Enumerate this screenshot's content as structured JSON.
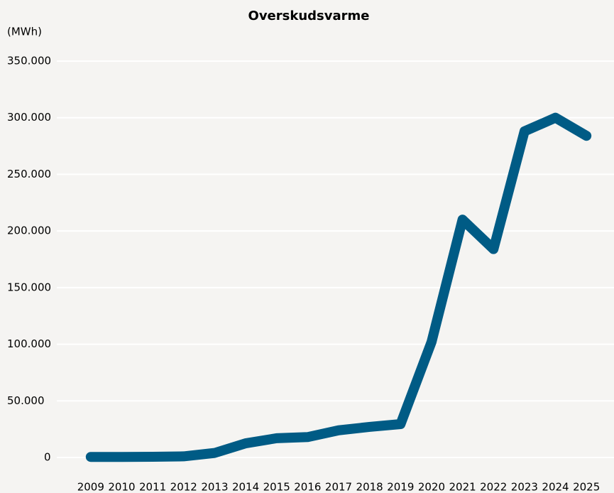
{
  "chart_data": {
    "type": "line",
    "title": "Overskudsvarme",
    "y_label": "(MWh)",
    "categories": [
      "2009",
      "2010",
      "2011",
      "2012",
      "2013",
      "2014",
      "2015",
      "2016",
      "2017",
      "2018",
      "2019",
      "2020",
      "2021",
      "2022",
      "2023",
      "2024",
      "2025"
    ],
    "series": [
      {
        "name": "Overskudsvarme",
        "color": "#005b85",
        "values": [
          500,
          500,
          600,
          1000,
          4000,
          12500,
          17000,
          18000,
          24000,
          27000,
          29500,
          102000,
          210000,
          184000,
          288000,
          300000,
          284000
        ]
      }
    ],
    "ylim": [
      0,
      350000
    ],
    "yticks": [
      0,
      {
        "value": 50000,
        "label": "50.000"
      },
      {
        "value": 100000,
        "label": "100.000"
      },
      {
        "value": 150000,
        "label": "150.000"
      },
      {
        "value": 200000,
        "label": "200.000"
      },
      {
        "value": 250000,
        "label": "250.000"
      },
      {
        "value": 300000,
        "label": "300.000"
      },
      {
        "value": 350000,
        "label": "350.000"
      }
    ],
    "grid": true
  }
}
